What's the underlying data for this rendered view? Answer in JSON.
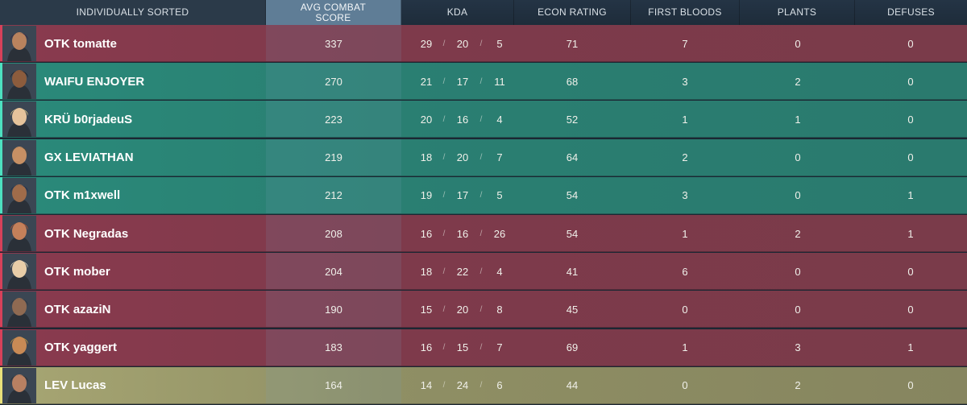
{
  "header": {
    "sort_label": "INDIVIDUALLY SORTED",
    "columns": [
      "AVG COMBAT SCORE",
      "KDA",
      "ECON RATING",
      "FIRST BLOODS",
      "PLANTS",
      "DEFUSES"
    ]
  },
  "kda_separator": "/",
  "team_colors": {
    "red": "#7e3a4b",
    "green": "#2a7f72",
    "gold": "#8f8f64"
  },
  "players": [
    {
      "name": "OTK tomatte",
      "team": "red",
      "agent_icon": "agent-portrait-icon",
      "acs": "337",
      "kills": "29",
      "deaths": "20",
      "assists": "5",
      "econ": "71",
      "first_bloods": "7",
      "plants": "0",
      "defuses": "0"
    },
    {
      "name": "WAIFU ENJOYER",
      "team": "green",
      "agent_icon": "agent-portrait-icon",
      "acs": "270",
      "kills": "21",
      "deaths": "17",
      "assists": "11",
      "econ": "68",
      "first_bloods": "3",
      "plants": "2",
      "defuses": "0"
    },
    {
      "name": "KRÜ b0rjadeuS",
      "team": "green",
      "agent_icon": "agent-portrait-icon",
      "acs": "223",
      "kills": "20",
      "deaths": "16",
      "assists": "4",
      "econ": "52",
      "first_bloods": "1",
      "plants": "1",
      "defuses": "0"
    },
    {
      "name": "GX LEVIATHAN",
      "team": "green",
      "agent_icon": "agent-portrait-icon",
      "acs": "219",
      "kills": "18",
      "deaths": "20",
      "assists": "7",
      "econ": "64",
      "first_bloods": "2",
      "plants": "0",
      "defuses": "0"
    },
    {
      "name": "OTK m1xwell",
      "team": "green",
      "agent_icon": "agent-portrait-icon",
      "acs": "212",
      "kills": "19",
      "deaths": "17",
      "assists": "5",
      "econ": "54",
      "first_bloods": "3",
      "plants": "0",
      "defuses": "1"
    },
    {
      "name": "OTK Negradas",
      "team": "red",
      "agent_icon": "agent-portrait-icon",
      "acs": "208",
      "kills": "16",
      "deaths": "16",
      "assists": "26",
      "econ": "54",
      "first_bloods": "1",
      "plants": "2",
      "defuses": "1"
    },
    {
      "name": "OTK mober",
      "team": "red",
      "agent_icon": "agent-portrait-icon",
      "acs": "204",
      "kills": "18",
      "deaths": "22",
      "assists": "4",
      "econ": "41",
      "first_bloods": "6",
      "plants": "0",
      "defuses": "0"
    },
    {
      "name": "OTK azaziN",
      "team": "red",
      "agent_icon": "agent-portrait-icon",
      "acs": "190",
      "kills": "15",
      "deaths": "20",
      "assists": "8",
      "econ": "45",
      "first_bloods": "0",
      "plants": "0",
      "defuses": "0"
    },
    {
      "name": "OTK yaggert",
      "team": "red",
      "agent_icon": "agent-portrait-icon",
      "acs": "183",
      "kills": "16",
      "deaths": "15",
      "assists": "7",
      "econ": "69",
      "first_bloods": "1",
      "plants": "3",
      "defuses": "1"
    },
    {
      "name": "LEV Lucas",
      "team": "gold",
      "agent_icon": "agent-portrait-icon",
      "acs": "164",
      "kills": "14",
      "deaths": "24",
      "assists": "6",
      "econ": "44",
      "first_bloods": "0",
      "plants": "2",
      "defuses": "0"
    }
  ]
}
